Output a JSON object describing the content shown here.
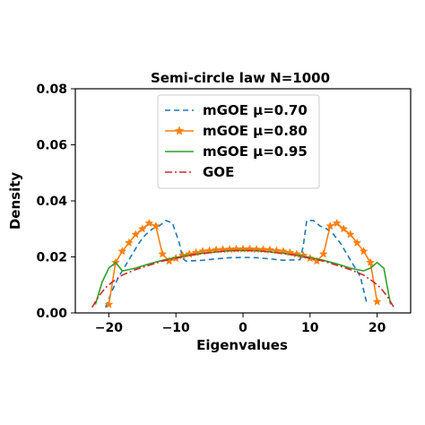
{
  "chart_data": {
    "type": "line",
    "title": "Semi-circle law  N=1000",
    "xlabel": "Eigenvalues",
    "ylabel": "Density",
    "xlim": [
      -25,
      25
    ],
    "ylim": [
      0,
      0.08
    ],
    "xticks": [
      {
        "v": -20,
        "label": "−20"
      },
      {
        "v": -10,
        "label": "−10"
      },
      {
        "v": 0,
        "label": "0"
      },
      {
        "v": 10,
        "label": "10"
      },
      {
        "v": 20,
        "label": "20"
      }
    ],
    "yticks": [
      {
        "v": 0,
        "label": "0.00"
      },
      {
        "v": 0.02,
        "label": "0.02"
      },
      {
        "v": 0.04,
        "label": "0.04"
      },
      {
        "v": 0.06,
        "label": "0.06"
      },
      {
        "v": 0.08,
        "label": "0.08"
      }
    ],
    "grid": false,
    "legend_position": "top-center",
    "series": [
      {
        "name": "mGOE μ=0.70",
        "color": "#1f77b4",
        "style": "dashed",
        "marker": "none",
        "x": [
          -20.5,
          -19.5,
          -18.5,
          -17.5,
          -16.5,
          -15.5,
          -14.5,
          -13.5,
          -12.5,
          -11.5,
          -10.5,
          -9.5,
          -9.0,
          -8.5,
          -6,
          -4,
          -2,
          0,
          2,
          4,
          6,
          8.5,
          9.0,
          9.5,
          10.5,
          11.5,
          12.5,
          13.5,
          14.5,
          15.5,
          16.5,
          17.5,
          18.5
        ],
        "y": [
          0.002,
          0.008,
          0.013,
          0.017,
          0.021,
          0.025,
          0.028,
          0.03,
          0.031,
          0.033,
          0.032,
          0.025,
          0.0195,
          0.0185,
          0.0188,
          0.0193,
          0.0197,
          0.0198,
          0.0197,
          0.0193,
          0.0188,
          0.019,
          0.024,
          0.033,
          0.033,
          0.031,
          0.03,
          0.028,
          0.025,
          0.021,
          0.017,
          0.013,
          0.003
        ]
      },
      {
        "name": "mGOE μ=0.80",
        "color": "#ff7f0e",
        "style": "solid",
        "marker": "star",
        "x": [
          -20,
          -19,
          -18,
          -17,
          -16,
          -15,
          -14,
          -13,
          -12,
          -11,
          -10,
          -9,
          -8,
          -7,
          -6,
          -5,
          -4,
          -3,
          -2,
          -1,
          0,
          1,
          2,
          3,
          4,
          5,
          6,
          7,
          8,
          9,
          10,
          11,
          12,
          13,
          14,
          15,
          16,
          17,
          18,
          19,
          20
        ],
        "y": [
          0.003,
          0.018,
          0.022,
          0.025,
          0.028,
          0.03,
          0.032,
          0.031,
          0.021,
          0.0185,
          0.0195,
          0.0205,
          0.021,
          0.0215,
          0.022,
          0.0222,
          0.0225,
          0.0226,
          0.0227,
          0.0228,
          0.0228,
          0.0228,
          0.0227,
          0.0226,
          0.0225,
          0.0222,
          0.022,
          0.0215,
          0.021,
          0.0205,
          0.0195,
          0.0185,
          0.021,
          0.031,
          0.032,
          0.03,
          0.028,
          0.025,
          0.022,
          0.018,
          0.004
        ]
      },
      {
        "name": "mGOE μ=0.95",
        "color": "#2ca02c",
        "style": "solid",
        "marker": "none",
        "x": [
          -22,
          -21,
          -20,
          -19,
          -18,
          -17,
          -16,
          -14,
          -12,
          -10,
          -8,
          -6,
          -4,
          -2,
          0,
          2,
          4,
          6,
          8,
          10,
          12,
          14,
          16,
          17,
          18,
          19,
          20,
          21,
          22
        ],
        "y": [
          0.003,
          0.011,
          0.016,
          0.018,
          0.015,
          0.0155,
          0.016,
          0.0175,
          0.0188,
          0.0198,
          0.0206,
          0.0213,
          0.0218,
          0.0222,
          0.0223,
          0.0222,
          0.0218,
          0.0213,
          0.0206,
          0.0198,
          0.0188,
          0.0175,
          0.016,
          0.0155,
          0.015,
          0.016,
          0.018,
          0.016,
          0.003
        ]
      },
      {
        "name": "GOE",
        "color": "#d62728",
        "style": "dashdot",
        "marker": "none",
        "x": [
          -22.5,
          -21.5,
          -20.5,
          -19.5,
          -18,
          -16,
          -14,
          -12,
          -10,
          -8,
          -6,
          -4,
          -2,
          0,
          2,
          4,
          6,
          8,
          10,
          12,
          14,
          16,
          18,
          19.5,
          20.5,
          21.5,
          22.5
        ],
        "y": [
          0.002,
          0.006,
          0.009,
          0.011,
          0.0135,
          0.0155,
          0.017,
          0.0185,
          0.0195,
          0.0205,
          0.0212,
          0.0218,
          0.0222,
          0.0223,
          0.0222,
          0.0218,
          0.0212,
          0.0205,
          0.0195,
          0.0185,
          0.017,
          0.0155,
          0.0135,
          0.011,
          0.009,
          0.006,
          0.002
        ]
      }
    ]
  }
}
